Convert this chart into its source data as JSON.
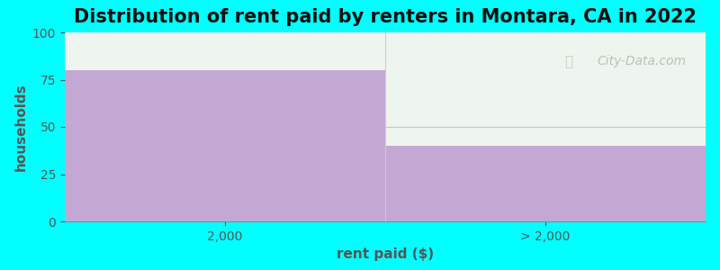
{
  "title": "Distribution of rent paid by renters in Montara, CA in 2022",
  "categories": [
    "2,000",
    "> 2,000"
  ],
  "values": [
    80,
    40
  ],
  "bar_color": "#C4A8D4",
  "plot_bg_color": "#EEF5EE",
  "fig_bg_color": "#00FFFF",
  "xlabel": "rent paid ($)",
  "ylabel": "households",
  "ylim": [
    0,
    100
  ],
  "yticks": [
    0,
    25,
    50,
    75,
    100
  ],
  "title_fontsize": 15,
  "axis_label_fontsize": 11,
  "tick_fontsize": 10,
  "watermark_text": "City-Data.com",
  "watermark_color": "#aabcaa",
  "label_color": "#555555"
}
